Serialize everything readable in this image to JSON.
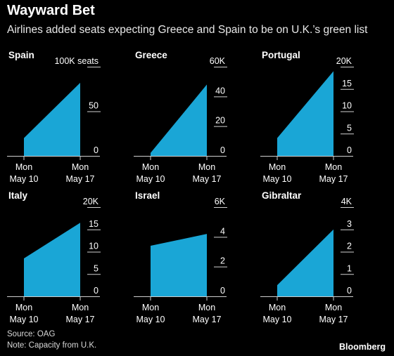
{
  "title": "Wayward Bet",
  "subtitle": "Airlines added seats expecting Greece and Spain to be on U.K.’s green list",
  "source": "Source: OAG",
  "note": "Note: Capacity from U.K.",
  "brand": "Bloomberg",
  "colors": {
    "fill": "#1aa6d6",
    "background": "#000000",
    "text": "#ffffff"
  },
  "chart_data": [
    {
      "type": "area",
      "title": "Spain",
      "x": [
        "Mon May 10",
        "Mon May 17"
      ],
      "values": [
        20000,
        82000
      ],
      "ylim": [
        0,
        100000
      ],
      "yticks": [
        "0",
        "50",
        "100K seats"
      ],
      "ytick_values": [
        0,
        50000,
        100000
      ]
    },
    {
      "type": "area",
      "title": "Greece",
      "x": [
        "Mon May 10",
        "Mon May 17"
      ],
      "values": [
        2000,
        48000
      ],
      "ylim": [
        0,
        60000
      ],
      "yticks": [
        "0",
        "20",
        "40",
        "60K"
      ],
      "ytick_values": [
        0,
        20000,
        40000,
        60000
      ]
    },
    {
      "type": "area",
      "title": "Portugal",
      "x": [
        "Mon May 10",
        "Mon May 17"
      ],
      "values": [
        4000,
        19000
      ],
      "ylim": [
        0,
        20000
      ],
      "yticks": [
        "0",
        "5",
        "10",
        "15",
        "20K"
      ],
      "ytick_values": [
        0,
        5000,
        10000,
        15000,
        20000
      ]
    },
    {
      "type": "area",
      "title": "Italy",
      "x": [
        "Mon May 10",
        "Mon May 17"
      ],
      "values": [
        8500,
        16500
      ],
      "ylim": [
        0,
        20000
      ],
      "yticks": [
        "0",
        "5",
        "10",
        "15",
        "20K"
      ],
      "ytick_values": [
        0,
        5000,
        10000,
        15000,
        20000
      ]
    },
    {
      "type": "area",
      "title": "Israel",
      "x": [
        "Mon May 10",
        "Mon May 17"
      ],
      "values": [
        3400,
        4200
      ],
      "ylim": [
        0,
        6000
      ],
      "yticks": [
        "0",
        "2",
        "4",
        "6K"
      ],
      "ytick_values": [
        0,
        2000,
        4000,
        6000
      ]
    },
    {
      "type": "area",
      "title": "Gibraltar",
      "x": [
        "Mon May 10",
        "Mon May 17"
      ],
      "values": [
        500,
        3000
      ],
      "ylim": [
        0,
        4000
      ],
      "yticks": [
        "0",
        "1",
        "2",
        "3",
        "4K"
      ],
      "ytick_values": [
        0,
        1000,
        2000,
        3000,
        4000
      ]
    }
  ]
}
